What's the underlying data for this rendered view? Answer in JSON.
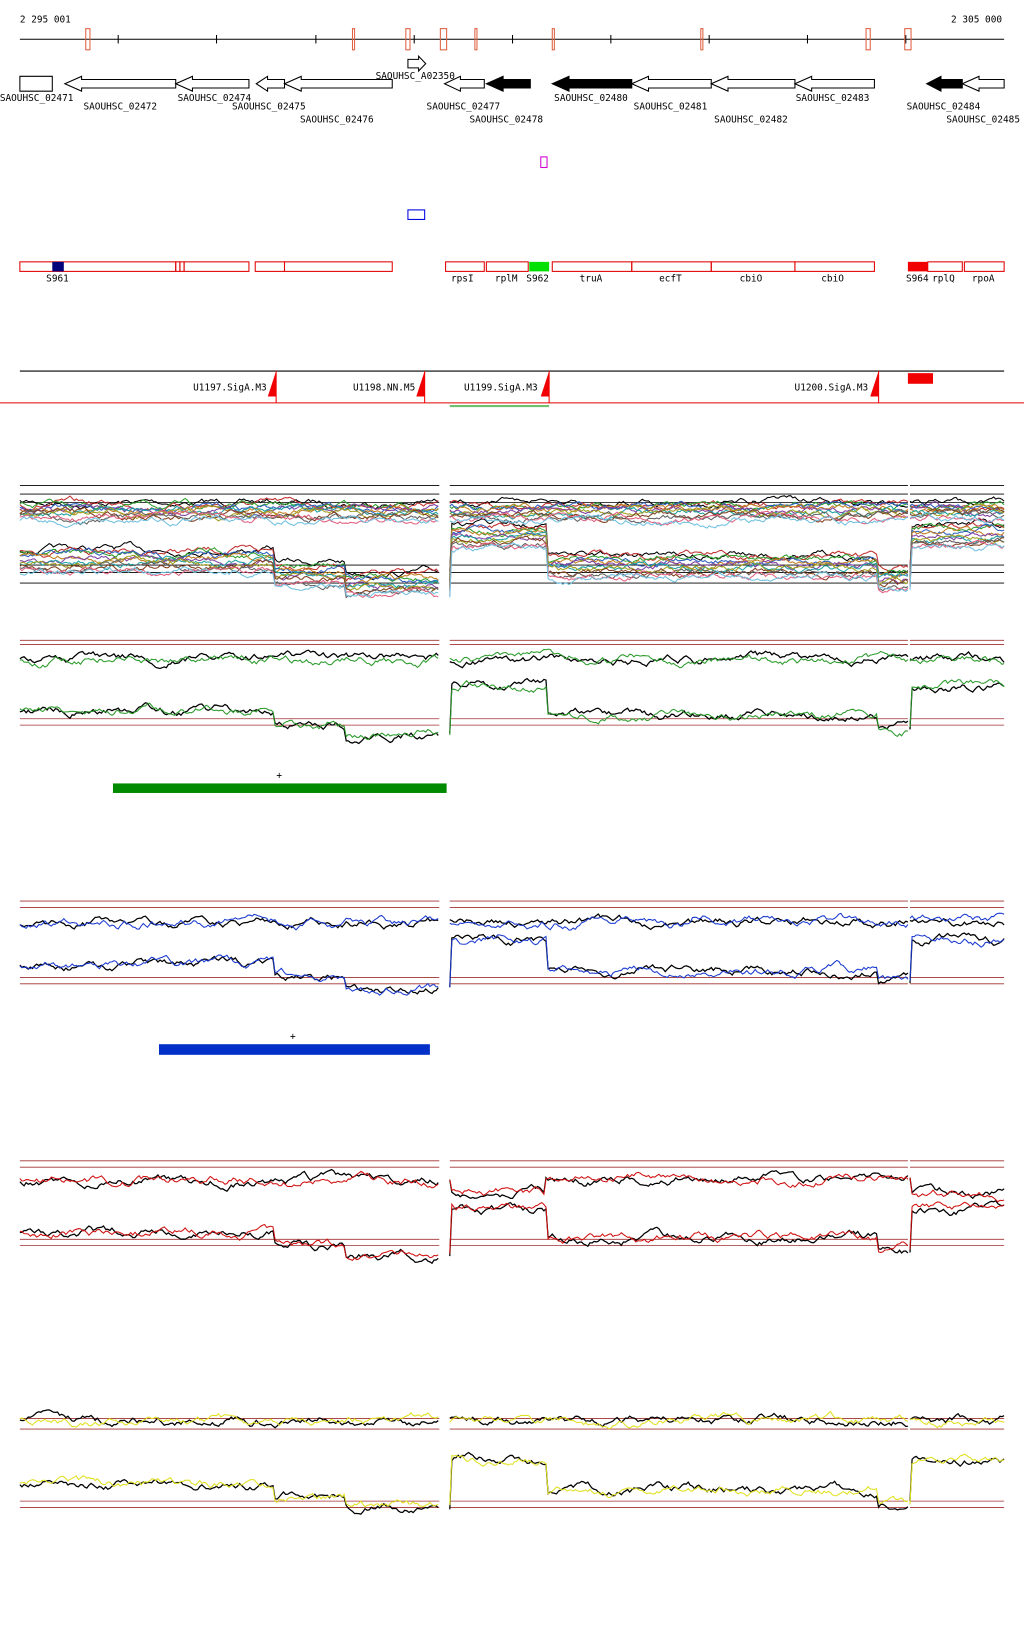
{
  "axis": {
    "start": "2 295 001",
    "end": "2 305 000"
  },
  "genes": [
    {
      "label": "SAOUHSC_02471"
    },
    {
      "label": "SAOUHSC_02472"
    },
    {
      "label": "SAOUHSC_02474"
    },
    {
      "label": "SAOUHSC_02475"
    },
    {
      "label": "SAOUHSC_02476"
    },
    {
      "label": "SAOUHSC_A02350"
    },
    {
      "label": "SAOUHSC_02477"
    },
    {
      "label": "SAOUHSC_02478"
    },
    {
      "label": "SAOUHSC_02480"
    },
    {
      "label": "SAOUHSC_02481"
    },
    {
      "label": "SAOUHSC_02482"
    },
    {
      "label": "SAOUHSC_02483"
    },
    {
      "label": "SAOUHSC_02484"
    },
    {
      "label": "SAOUHSC_02485"
    }
  ],
  "features": [
    {
      "label": "S961"
    },
    {
      "label": "rpsI"
    },
    {
      "label": "rplM"
    },
    {
      "label": "S962"
    },
    {
      "label": "truA"
    },
    {
      "label": "ecfT"
    },
    {
      "label": "cbiO"
    },
    {
      "label": "cbiO"
    },
    {
      "label": "S964"
    },
    {
      "label": "rplQ"
    },
    {
      "label": "rpoA"
    }
  ],
  "operons": [
    {
      "label": "U1197.SigA.M3"
    },
    {
      "label": "U1198.NN.M5"
    },
    {
      "label": "U1199.SigA.M3"
    },
    {
      "label": "U1200.SigA.M3"
    }
  ],
  "markers": [
    "+",
    "+"
  ]
}
